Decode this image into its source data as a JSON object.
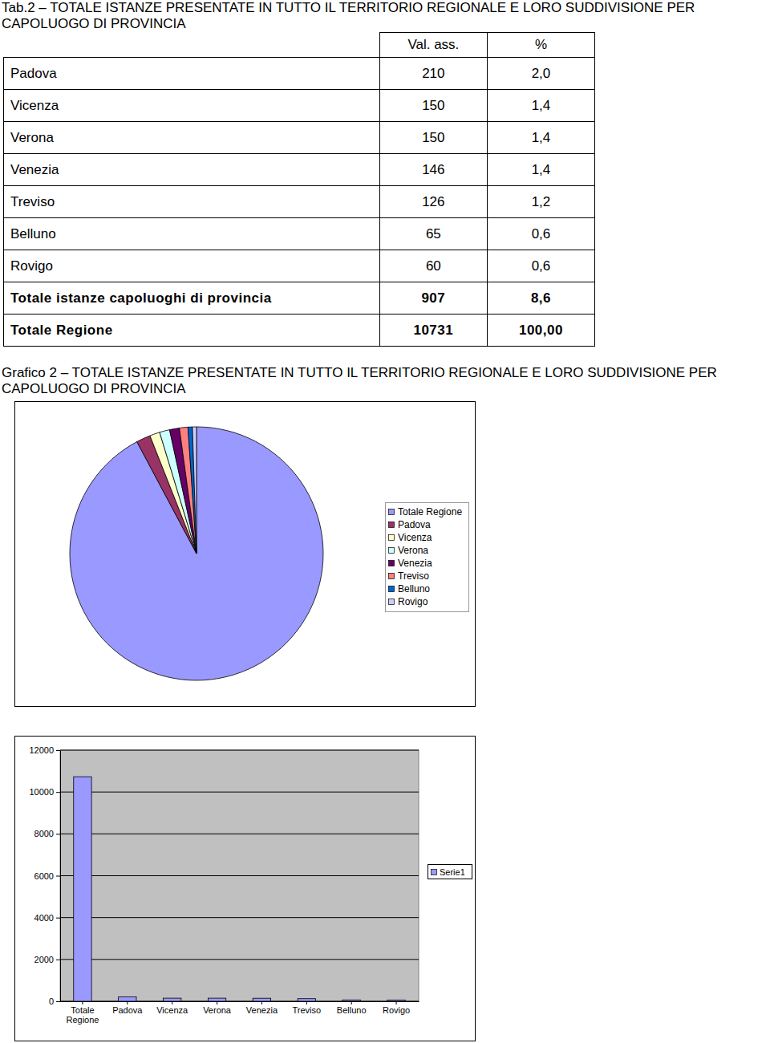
{
  "table": {
    "title": "Tab.2 – TOTALE ISTANZE PRESENTATE IN TUTTO IL TERRITORIO REGIONALE E LORO SUDDIVISIONE PER CAPOLUOGO DI PROVINCIA",
    "header": [
      "Val. ass.",
      "%"
    ],
    "rows": [
      [
        "Padova",
        "210",
        "2,0"
      ],
      [
        "Vicenza",
        "150",
        "1,4"
      ],
      [
        "Verona",
        "150",
        "1,4"
      ],
      [
        "Venezia",
        "146",
        "1,4"
      ],
      [
        "Treviso",
        "126",
        "1,2"
      ],
      [
        "Belluno",
        "65",
        "0,6"
      ],
      [
        "Rovigo",
        "60",
        "0,6"
      ],
      [
        "Totale istanze capoluoghi di provincia",
        "907",
        "8,6"
      ],
      [
        "Totale Regione",
        "10731",
        "100,00"
      ]
    ]
  },
  "chart_data": [
    {
      "type": "pie",
      "title": "Grafico 2 – TOTALE ISTANZE PRESENTATE IN TUTTO IL TERRITORIO REGIONALE E LORO SUDDIVISIONE PER CAPOLUOGO DI PROVINCIA",
      "categories": [
        "Totale Regione",
        "Padova",
        "Vicenza",
        "Verona",
        "Venezia",
        "Treviso",
        "Belluno",
        "Rovigo"
      ],
      "values": [
        10731,
        210,
        150,
        150,
        146,
        126,
        65,
        60
      ],
      "colors": [
        "#9999ff",
        "#993366",
        "#ffffcc",
        "#ccffff",
        "#660066",
        "#ff8080",
        "#0066cc",
        "#ccccff"
      ],
      "legend": "right"
    },
    {
      "type": "bar",
      "categories": [
        "Totale Regione",
        "Padova",
        "Vicenza",
        "Verona",
        "Venezia",
        "Treviso",
        "Belluno",
        "Rovigo"
      ],
      "series": [
        {
          "name": "Serie1",
          "color": "#9999ff",
          "values": [
            10731,
            210,
            150,
            150,
            146,
            126,
            65,
            60
          ]
        }
      ],
      "ylim": [
        0,
        12000
      ],
      "yticks": [
        0,
        2000,
        4000,
        6000,
        8000,
        10000,
        12000
      ],
      "grid": true,
      "legend": "right"
    }
  ]
}
